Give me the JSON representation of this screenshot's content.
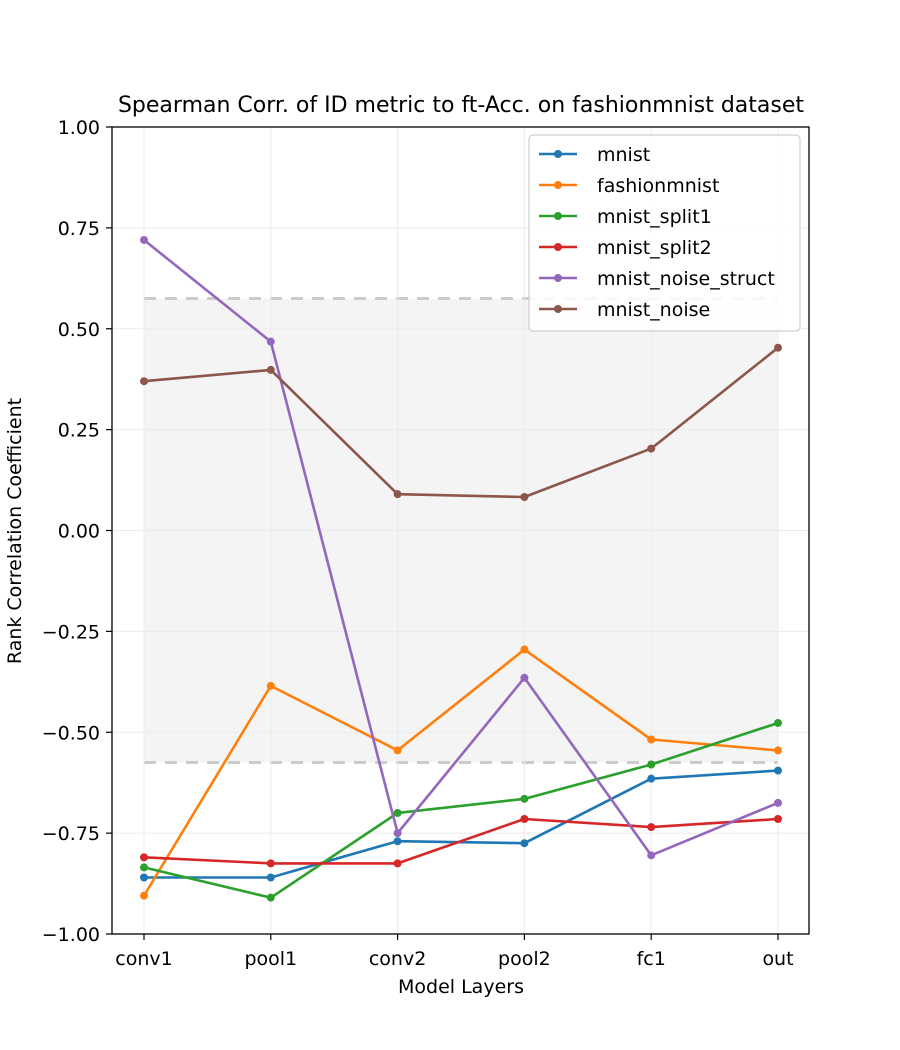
{
  "chart_data": {
    "type": "line",
    "title": "Spearman Corr. of ID metric to ft-Acc. on fashionmnist dataset",
    "xlabel": "Model Layers",
    "ylabel": "Rank Correlation Coefficient",
    "categories": [
      "conv1",
      "pool1",
      "conv2",
      "pool2",
      "fc1",
      "out"
    ],
    "ylim": [
      -1.0,
      1.0
    ],
    "yticks": [
      -1.0,
      -0.75,
      -0.5,
      -0.25,
      0.0,
      0.25,
      0.5,
      0.75,
      1.0
    ],
    "ytick_labels": [
      "−1.00",
      "−0.75",
      "−0.50",
      "−0.25",
      "0.00",
      "0.25",
      "0.50",
      "0.75",
      "1.00"
    ],
    "grid": true,
    "legend_position": "top-right",
    "band": {
      "low": -0.575,
      "high": 0.575,
      "color": "#f4f4f4",
      "edge_color": "#cccccc"
    },
    "series": [
      {
        "name": "mnist",
        "color": "#1f77b4",
        "values": [
          -0.86,
          -0.86,
          -0.77,
          -0.775,
          -0.615,
          -0.595
        ]
      },
      {
        "name": "fashionmnist",
        "color": "#ff7f0e",
        "values": [
          -0.905,
          -0.385,
          -0.545,
          -0.295,
          -0.518,
          -0.545
        ]
      },
      {
        "name": "mnist_split1",
        "color": "#2ca02c",
        "values": [
          -0.835,
          -0.91,
          -0.7,
          -0.665,
          -0.58,
          -0.477
        ]
      },
      {
        "name": "mnist_split2",
        "color": "#d62728",
        "values": [
          -0.81,
          -0.825,
          -0.825,
          -0.715,
          -0.735,
          -0.715
        ]
      },
      {
        "name": "mnist_noise_struct",
        "color": "#9467bd",
        "values": [
          0.72,
          0.468,
          -0.75,
          -0.365,
          -0.805,
          -0.675
        ]
      },
      {
        "name": "mnist_noise",
        "color": "#8c564b",
        "values": [
          0.37,
          0.398,
          0.09,
          0.083,
          0.203,
          0.453
        ]
      }
    ]
  }
}
